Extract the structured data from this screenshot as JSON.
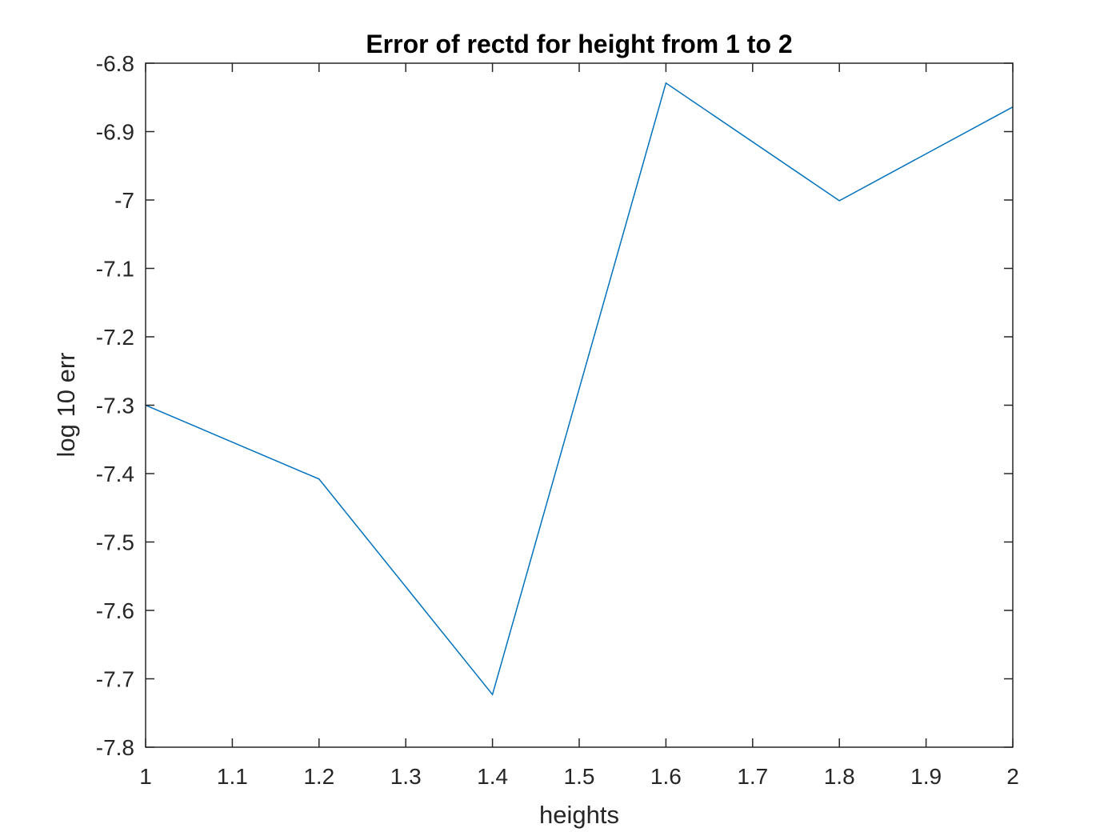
{
  "chart_data": {
    "type": "line",
    "title": "Error of rectd for height from 1 to 2",
    "xlabel": "heights",
    "ylabel": "log 10 err",
    "xlim": [
      1,
      2
    ],
    "ylim": [
      -7.8,
      -6.8
    ],
    "xticks": [
      1,
      1.1,
      1.2,
      1.3,
      1.4,
      1.5,
      1.6,
      1.7,
      1.8,
      1.9,
      2
    ],
    "xtick_labels": [
      "1",
      "1.1",
      "1.2",
      "1.3",
      "1.4",
      "1.5",
      "1.6",
      "1.7",
      "1.8",
      "1.9",
      "2"
    ],
    "yticks": [
      -6.8,
      -6.9,
      -7,
      -7.1,
      -7.2,
      -7.3,
      -7.4,
      -7.5,
      -7.6,
      -7.7,
      -7.8
    ],
    "ytick_labels": [
      "-6.8",
      "-6.9",
      "-7",
      "-7.1",
      "-7.2",
      "-7.3",
      "-7.4",
      "-7.5",
      "-7.6",
      "-7.7",
      "-7.8"
    ],
    "grid": false,
    "series": [
      {
        "x": [
          1,
          1.2,
          1.4,
          1.6,
          1.8,
          2
        ],
        "y": [
          -7.3,
          -7.408,
          -7.723,
          -6.829,
          -7.001,
          -6.864
        ],
        "color": "#0072BD"
      }
    ]
  }
}
